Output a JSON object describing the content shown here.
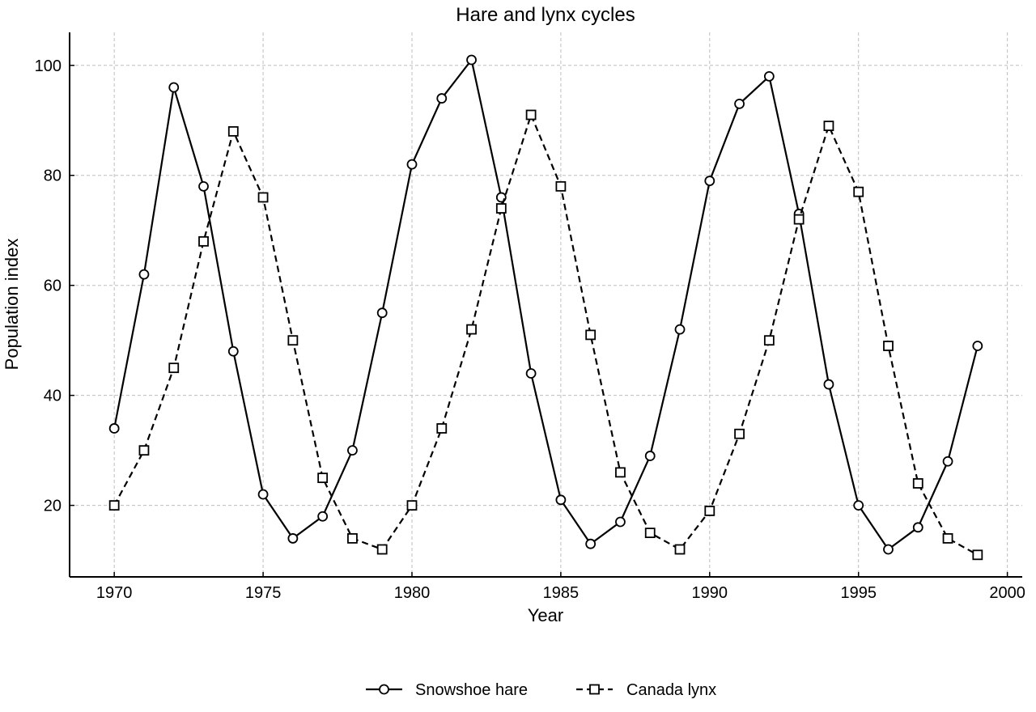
{
  "chart_data": {
    "type": "line",
    "title": "Hare and lynx cycles",
    "xlabel": "Year",
    "ylabel": "Population index",
    "xlim": [
      1968.5,
      2000.5
    ],
    "ylim": [
      7,
      106
    ],
    "xticks": [
      1970,
      1975,
      1980,
      1985,
      1990,
      1995,
      2000
    ],
    "yticks": [
      20,
      40,
      60,
      80,
      100
    ],
    "grid": true,
    "legend_position": "bottom-center",
    "x": [
      1970,
      1971,
      1972,
      1973,
      1974,
      1975,
      1976,
      1977,
      1978,
      1979,
      1980,
      1981,
      1982,
      1983,
      1984,
      1985,
      1986,
      1987,
      1988,
      1989,
      1990,
      1991,
      1992,
      1993,
      1994,
      1995,
      1996,
      1997,
      1998,
      1999
    ],
    "series": [
      {
        "name": "Snowshoe hare",
        "marker": "circle",
        "linestyle": "solid",
        "color": "#000000",
        "values": [
          34,
          62,
          96,
          78,
          48,
          22,
          14,
          18,
          30,
          55,
          82,
          94,
          101,
          76,
          44,
          21,
          13,
          17,
          29,
          52,
          79,
          93,
          98,
          73,
          42,
          20,
          12,
          16,
          28,
          49
        ]
      },
      {
        "name": "Canada lynx",
        "marker": "square",
        "linestyle": "dashed",
        "color": "#000000",
        "values": [
          20,
          30,
          45,
          68,
          88,
          76,
          50,
          25,
          14,
          12,
          20,
          34,
          52,
          74,
          91,
          78,
          51,
          26,
          15,
          12,
          19,
          33,
          50,
          72,
          89,
          77,
          49,
          24,
          14,
          11
        ]
      }
    ]
  }
}
